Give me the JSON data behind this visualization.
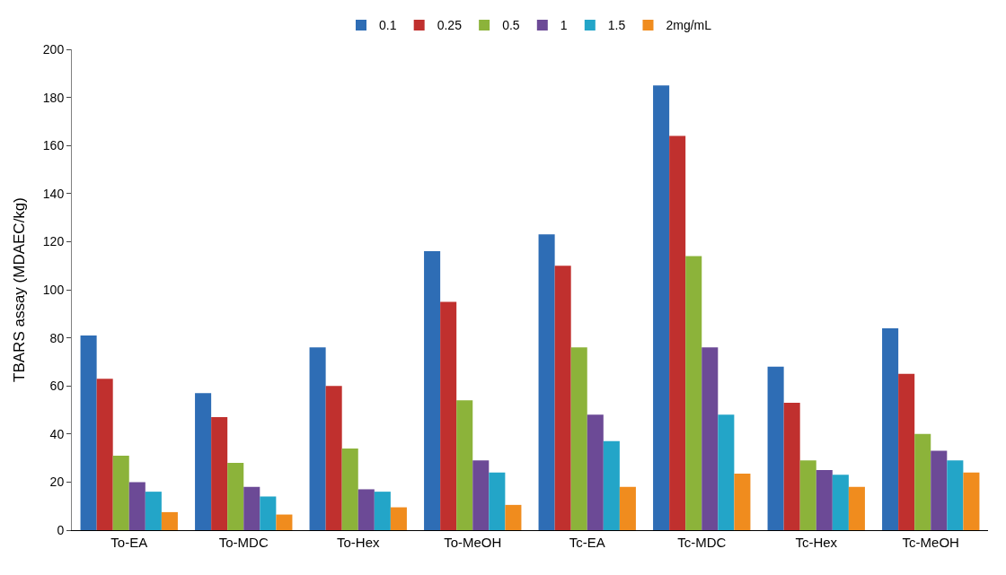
{
  "chart_data": {
    "type": "bar",
    "ylabel": "TBARS assay (MDAEC/kg)",
    "categories": [
      "To-EA",
      "To-MDC",
      "To-Hex",
      "To-MeOH",
      "Tc-EA",
      "Tc-MDC",
      "Tc-Hex",
      "Tc-MeOH"
    ],
    "series": [
      {
        "name": "0.1",
        "color": "#2e6db5",
        "values": [
          81,
          57,
          76,
          116,
          123,
          185,
          68,
          84
        ]
      },
      {
        "name": "0.25",
        "color": "#c0302e",
        "values": [
          63,
          47,
          60,
          95,
          110,
          164,
          53,
          65
        ]
      },
      {
        "name": "0.5",
        "color": "#8cb33a",
        "values": [
          31,
          28,
          34,
          54,
          76,
          114,
          29,
          40
        ]
      },
      {
        "name": "1",
        "color": "#6c4a96",
        "values": [
          20,
          18,
          17,
          29,
          48,
          76,
          25,
          33
        ]
      },
      {
        "name": "1.5",
        "color": "#23a5c8",
        "values": [
          16,
          14,
          16,
          24,
          37,
          48,
          23,
          29
        ]
      },
      {
        "name": "2mg/mL",
        "color": "#f08c1e",
        "values": [
          7.5,
          6.5,
          9.5,
          10.5,
          18,
          23.5,
          18,
          24
        ]
      }
    ],
    "ylim": [
      0,
      200
    ],
    "yticks": [
      0,
      20,
      40,
      60,
      80,
      100,
      120,
      140,
      160,
      180,
      200
    ],
    "legend": "top"
  }
}
